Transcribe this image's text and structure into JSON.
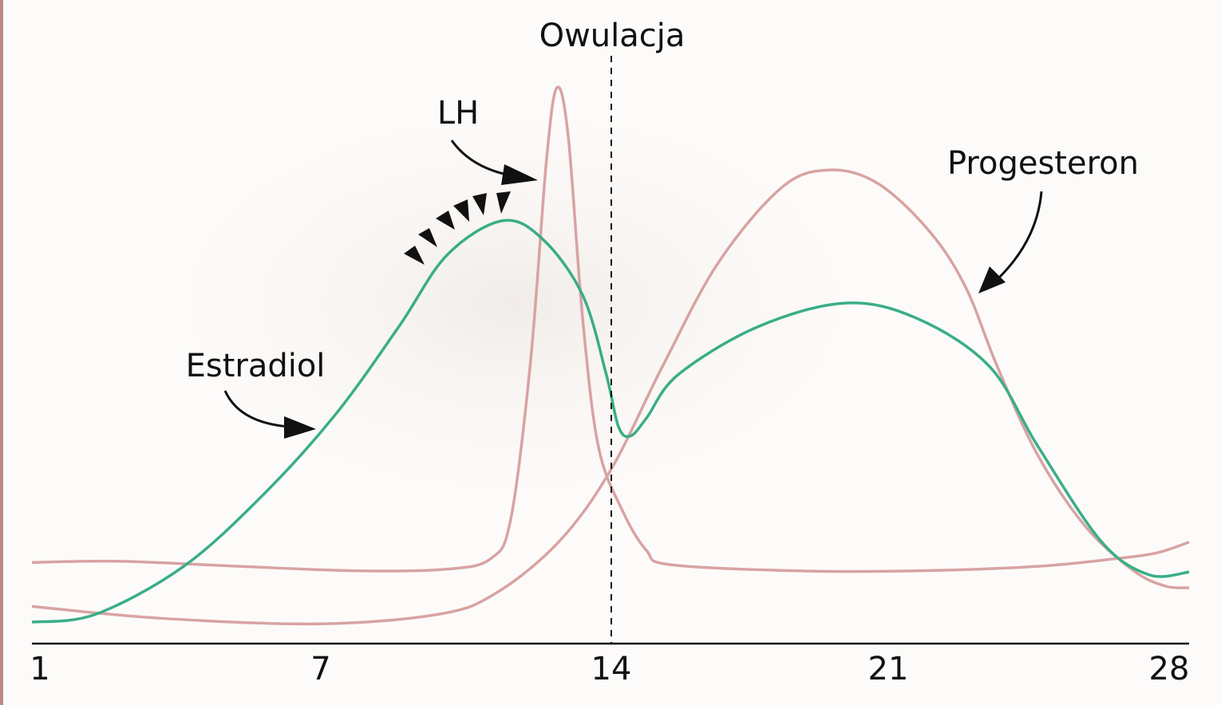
{
  "chart_data": {
    "type": "line",
    "title": "",
    "xlabel": "",
    "ylabel": "",
    "x_ticks": [
      1,
      7,
      14,
      21,
      28
    ],
    "x_tick_labels": [
      "1",
      "7",
      "14",
      "21",
      "28"
    ],
    "xlim": [
      0.83,
      28.5
    ],
    "ylim": [
      0,
      100
    ],
    "grid": false,
    "colors": {
      "estradiol": "#3aae86",
      "lh": "#d8a3a3",
      "progesteron": "#d8a3a3"
    },
    "annotations": {
      "ovulation": {
        "label": "Owulacja",
        "day": 14
      },
      "lh_label": "LH",
      "progesteron_label": "Progesteron",
      "estradiol_label": "Estradiol"
    },
    "series": [
      {
        "name": "Estradiol",
        "color": "#3aae86",
        "x": [
          0.83,
          2.19,
          4.07,
          5.77,
          7.35,
          8.88,
          10.04,
          11.38,
          12.35,
          13.31,
          13.88,
          14.18,
          14.48,
          14.89,
          15.69,
          17.71,
          19.93,
          21.74,
          23.53,
          24.72,
          26.31,
          27.5,
          28.5
        ],
        "y": [
          3.8,
          5.2,
          13.7,
          26.4,
          40.6,
          56.2,
          68.9,
          75.0,
          71.7,
          61.8,
          47.7,
          38.5,
          36.8,
          40.0,
          47.7,
          56.2,
          60.4,
          57.6,
          49.1,
          35.1,
          18.1,
          12.2,
          12.7
        ]
      },
      {
        "name": "LH",
        "color": "#d8a3a3",
        "x": [
          0.83,
          2.7,
          5.26,
          7.92,
          10.04,
          11.1,
          11.58,
          12.06,
          12.44,
          12.69,
          12.96,
          13.31,
          13.69,
          14.28,
          14.89,
          15.49,
          18.72,
          21.74,
          24.72,
          26.71,
          27.7,
          28.5
        ],
        "y": [
          14.4,
          14.6,
          13.7,
          12.9,
          13.2,
          15.1,
          22.2,
          50.5,
          85.9,
          98.6,
          90.1,
          57.6,
          34.9,
          23.6,
          16.5,
          14.0,
          12.9,
          12.9,
          13.7,
          15.1,
          16.1,
          18.0
        ]
      },
      {
        "name": "Progesteron",
        "color": "#d8a3a3",
        "x": [
          0.83,
          3.56,
          6.97,
          9.83,
          11.19,
          12.73,
          13.98,
          15.29,
          16.7,
          18.31,
          19.52,
          20.74,
          22.03,
          22.93,
          23.72,
          24.72,
          25.91,
          27.1,
          27.9,
          28.5
        ],
        "y": [
          6.6,
          4.5,
          3.5,
          5.2,
          8.8,
          18.0,
          30.7,
          49.1,
          67.5,
          80.9,
          84.0,
          81.6,
          73.1,
          63.2,
          49.1,
          33.5,
          20.8,
          13.0,
          10.2,
          9.9
        ]
      }
    ]
  }
}
